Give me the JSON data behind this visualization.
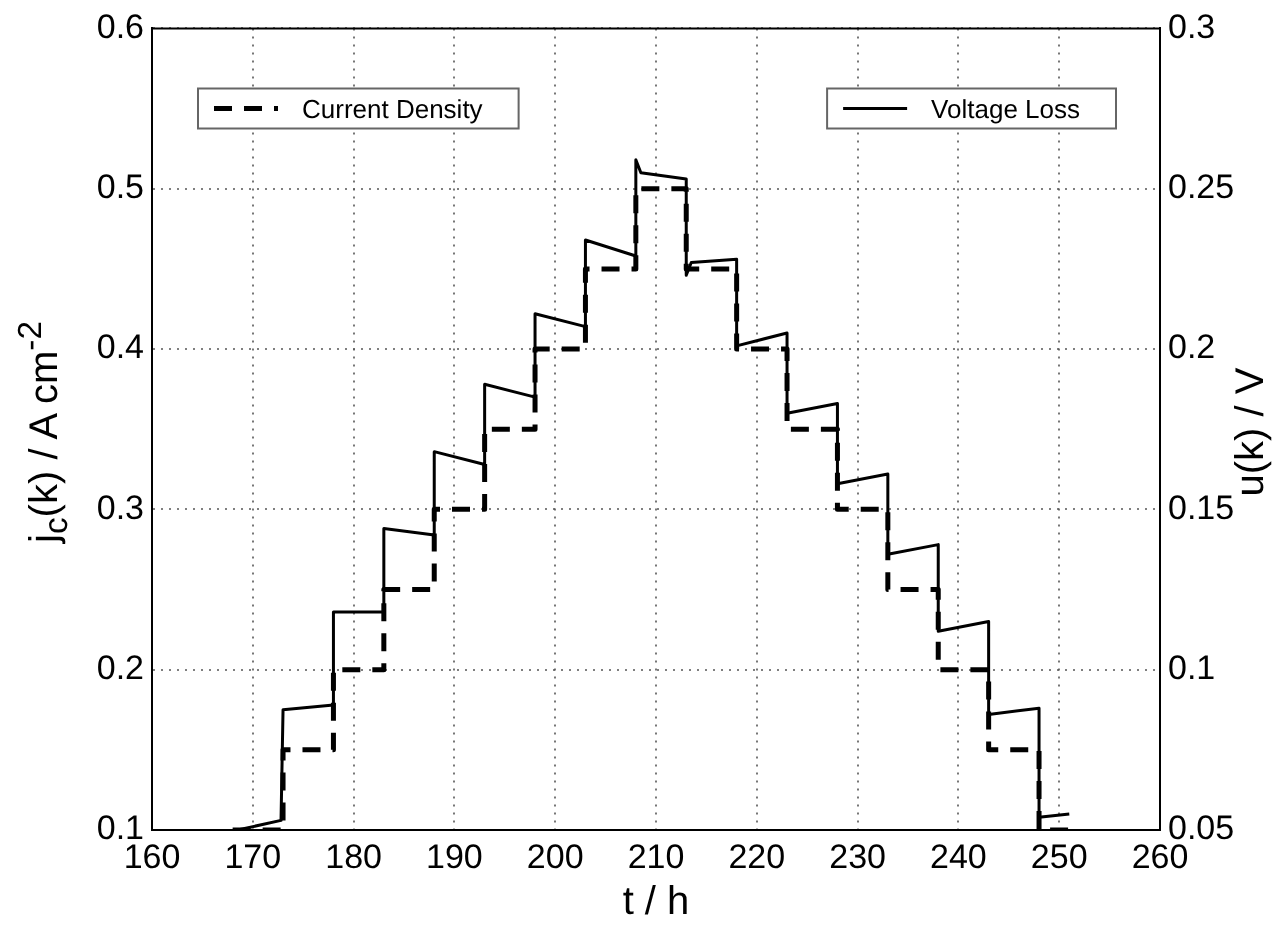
{
  "chart_data": {
    "type": "line",
    "xlabel": "t / h",
    "ylabel": "j$_{c}$(k) / A cm$^{-2}$",
    "y2label": "u(k) / V",
    "xlim": [
      160,
      260
    ],
    "xticks": [
      160,
      170,
      180,
      190,
      200,
      210,
      220,
      230,
      240,
      250,
      260
    ],
    "ylim": [
      0.1,
      0.6
    ],
    "yticks": [
      0.1,
      0.2,
      0.3,
      0.4,
      0.5,
      0.6
    ],
    "y2lim": [
      0.05,
      0.3
    ],
    "y2ticks": [
      0.05,
      0.1,
      0.15,
      0.2,
      0.25,
      0.3
    ],
    "grid": true,
    "legend": "top",
    "marker": "none",
    "series": [
      {
        "name": "Current Density",
        "color": "#000000",
        "line_style": "dashed",
        "x": [
          168,
          173,
          173,
          178,
          178,
          183,
          183,
          188,
          188,
          193,
          193,
          198,
          198,
          203,
          203,
          208,
          208,
          213,
          213,
          218,
          218,
          223,
          223,
          228,
          228,
          233,
          233,
          238,
          238,
          243,
          243,
          248,
          248,
          251
        ],
        "values": [
          0.1,
          0.1,
          0.15,
          0.15,
          0.2,
          0.2,
          0.25,
          0.25,
          0.3,
          0.3,
          0.35,
          0.35,
          0.4,
          0.4,
          0.45,
          0.45,
          0.5,
          0.5,
          0.45,
          0.45,
          0.4,
          0.4,
          0.35,
          0.35,
          0.3,
          0.3,
          0.25,
          0.25,
          0.2,
          0.2,
          0.15,
          0.15,
          0.1,
          0.1
        ]
      },
      {
        "name": "Voltage Loss",
        "color": "#000000",
        "line_style": "solid",
        "axis": "y2",
        "x": [
          168.5,
          172.8,
          173,
          178,
          178,
          183,
          183,
          188,
          188,
          193,
          193,
          198,
          198,
          203,
          203,
          208,
          208,
          208.5,
          213,
          213,
          213.5,
          218,
          218,
          223,
          223,
          228,
          228,
          233,
          233,
          238,
          238,
          243,
          243,
          248,
          248,
          251
        ],
        "values": [
          0.05,
          0.053,
          0.0875,
          0.089,
          0.118,
          0.118,
          0.144,
          0.142,
          0.168,
          0.164,
          0.189,
          0.185,
          0.211,
          0.207,
          0.234,
          0.229,
          0.259,
          0.255,
          0.253,
          0.223,
          0.227,
          0.228,
          0.201,
          0.205,
          0.18,
          0.183,
          0.158,
          0.161,
          0.136,
          0.139,
          0.112,
          0.115,
          0.086,
          0.088,
          0.054,
          0.055
        ]
      }
    ]
  }
}
